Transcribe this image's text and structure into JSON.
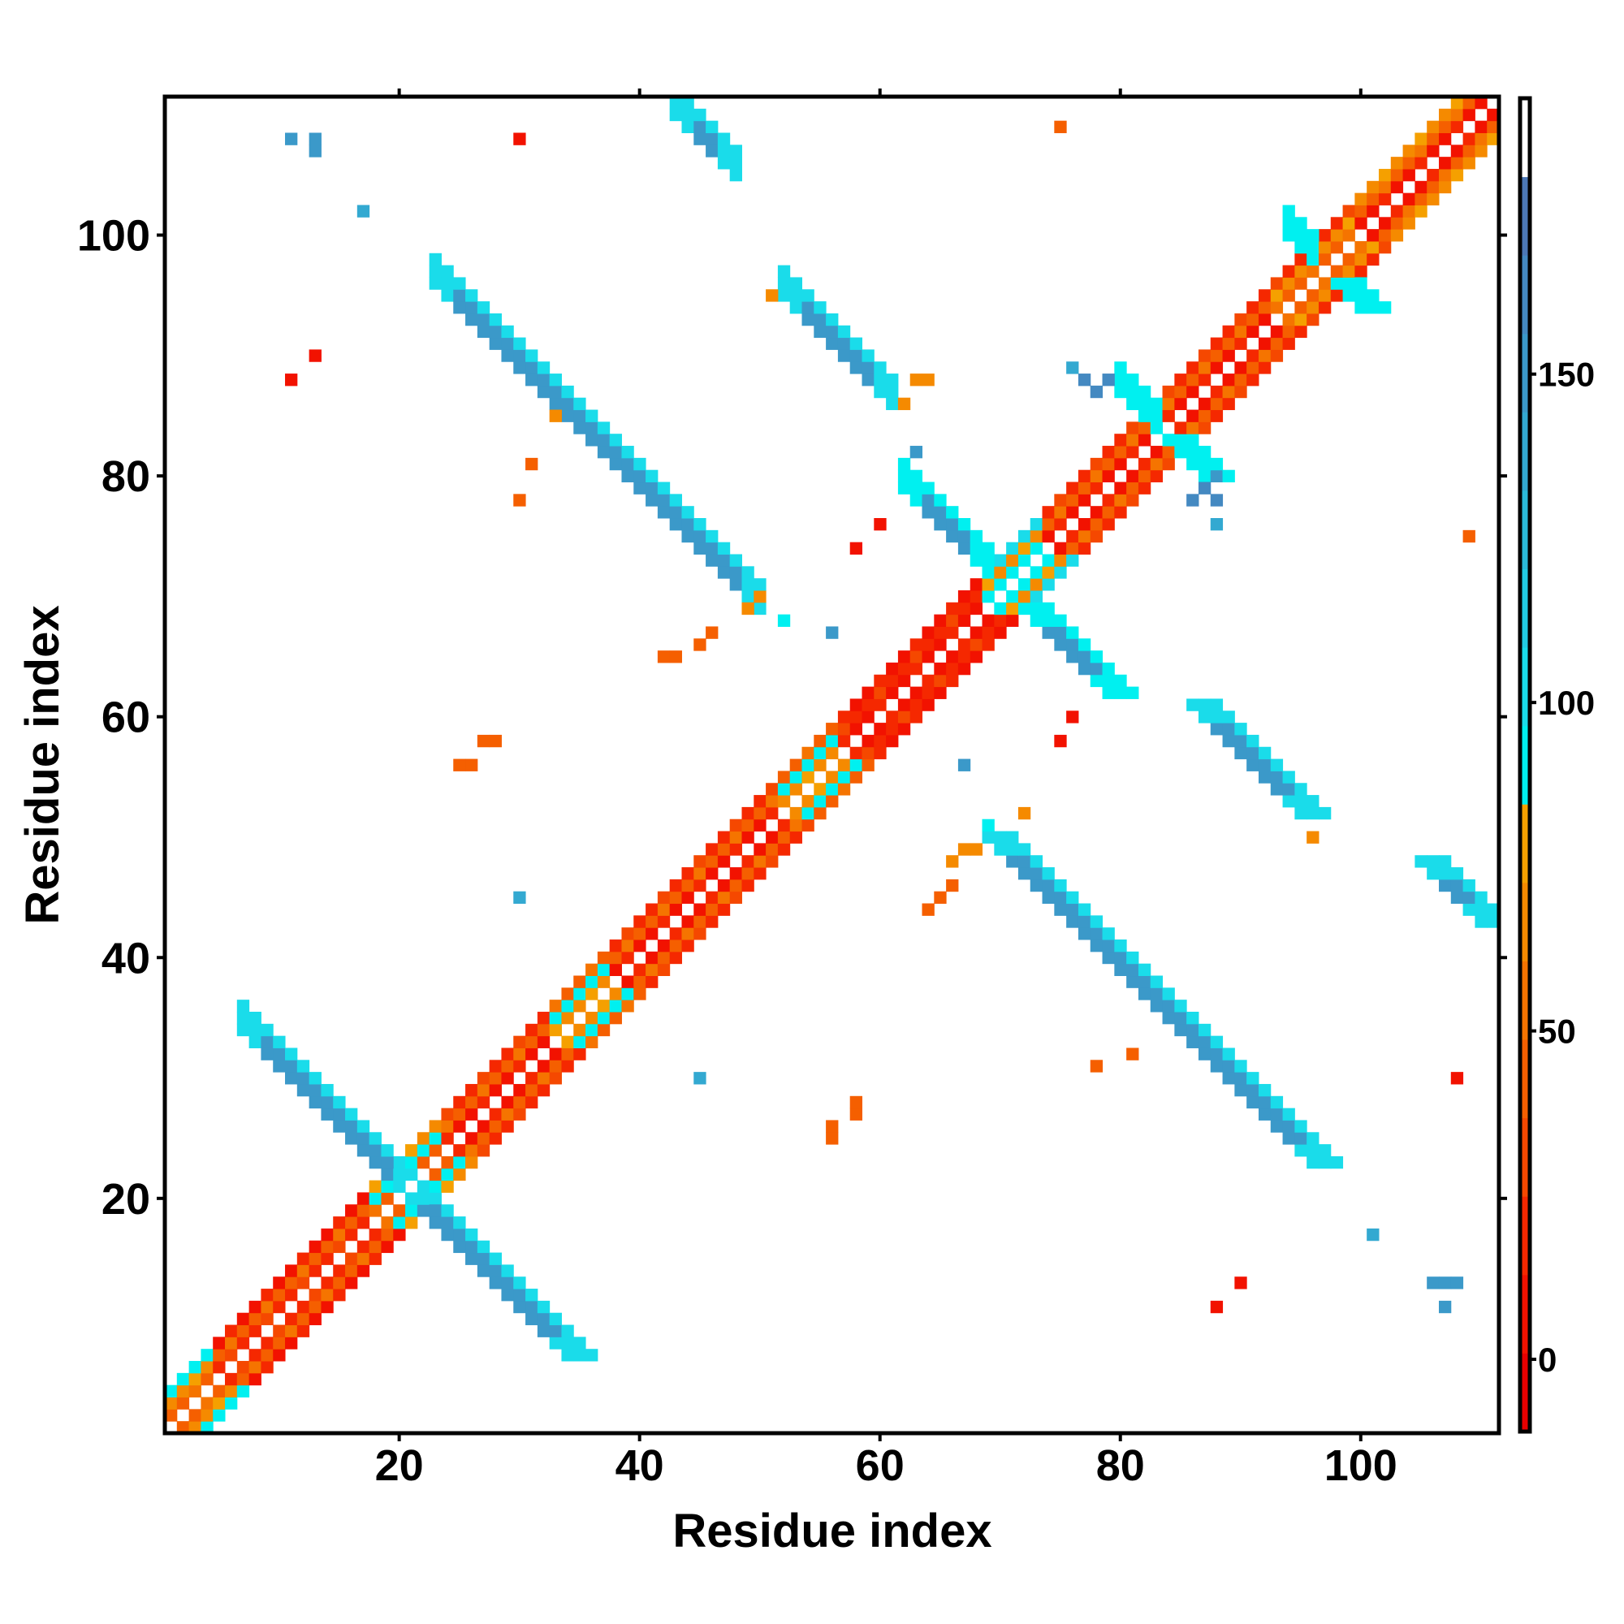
{
  "chart_data": {
    "type": "heatmap",
    "title": "",
    "xlabel": "Residue index",
    "ylabel": "Residue index",
    "n_residues": 111,
    "xlim": [
      0.5,
      111.5
    ],
    "ylim": [
      0.5,
      111.5
    ],
    "xticks": [
      20,
      40,
      60,
      80,
      100
    ],
    "yticks": [
      20,
      40,
      60,
      80,
      100
    ],
    "colorbar": {
      "range": [
        -11,
        192
      ],
      "ticks": [
        0,
        50,
        100,
        150
      ],
      "levels": [
        "#e80000",
        "#f21200",
        "#f52800",
        "#f54800",
        "#f55f00",
        "#f57400",
        "#f58a00",
        "#f5a000",
        "#00f0f0",
        "#1adcea",
        "#22cbe2",
        "#2bbad9",
        "#33a9d1",
        "#3b99c9",
        "#4489c1",
        "#4c78b6"
      ],
      "above_max": "#ffffff"
    },
    "diagonal_regions": [
      {
        "from": 1,
        "to": 5,
        "values": [
          40,
          65,
          95
        ]
      },
      {
        "from": 5,
        "to": 18,
        "values": [
          15,
          40,
          5
        ]
      },
      {
        "from": 18,
        "to": 24,
        "values": [
          40,
          95,
          65
        ]
      },
      {
        "from": 24,
        "to": 33,
        "values": [
          5,
          40,
          15
        ]
      },
      {
        "from": 33,
        "to": 38,
        "values": [
          65,
          95,
          40
        ]
      },
      {
        "from": 38,
        "to": 52,
        "values": [
          5,
          40,
          15
        ]
      },
      {
        "from": 52,
        "to": 57,
        "values": [
          65,
          95,
          40
        ]
      },
      {
        "from": 57,
        "to": 69,
        "values": [
          5,
          15,
          5
        ]
      },
      {
        "from": 69,
        "to": 74,
        "values": [
          95,
          65,
          105
        ]
      },
      {
        "from": 74,
        "to": 93,
        "values": [
          5,
          40,
          15
        ]
      },
      {
        "from": 93,
        "to": 100,
        "values": [
          40,
          65,
          15
        ]
      },
      {
        "from": 100,
        "to": 111,
        "values": [
          5,
          40,
          65
        ]
      }
    ],
    "strands": [
      {
        "from": 7,
        "to": 21,
        "sum": 42,
        "value": 150,
        "edge": 105
      },
      {
        "from": 23,
        "to": 50,
        "sum": 120,
        "value": 150,
        "edge": 105
      },
      {
        "from": 43,
        "to": 48,
        "sum": 154,
        "value": 150,
        "edge": 105
      },
      {
        "from": 52,
        "to": 61,
        "sum": 148,
        "value": 155,
        "edge": 105
      },
      {
        "from": 62,
        "to": 69,
        "sum": 142,
        "value": 150,
        "edge": 95
      },
      {
        "from": 80,
        "to": 83,
        "sum": 168,
        "value": 110,
        "edge": 95
      },
      {
        "from": 94,
        "to": 96,
        "sum": 195,
        "value": 110,
        "edge": 95
      }
    ],
    "points": [
      [
        11,
        108,
        150
      ],
      [
        13,
        108,
        150
      ],
      [
        13,
        107,
        150
      ],
      [
        17,
        102,
        140
      ],
      [
        30,
        108,
        5
      ],
      [
        75,
        109,
        40
      ],
      [
        13,
        90,
        5
      ],
      [
        11,
        88,
        5
      ],
      [
        33,
        85,
        65
      ],
      [
        31,
        81,
        40
      ],
      [
        30,
        78,
        40
      ],
      [
        60,
        76,
        5
      ],
      [
        58,
        74,
        5
      ],
      [
        109,
        75,
        40
      ],
      [
        88,
        76,
        140
      ],
      [
        87,
        79,
        160
      ],
      [
        88,
        78,
        160
      ],
      [
        86,
        78,
        160
      ],
      [
        88,
        80,
        150
      ],
      [
        78,
        87,
        160
      ],
      [
        77,
        88,
        160
      ],
      [
        79,
        88,
        160
      ],
      [
        76,
        89,
        140
      ],
      [
        50,
        70,
        65
      ],
      [
        49,
        69,
        65
      ],
      [
        46,
        67,
        40
      ],
      [
        45,
        66,
        40
      ],
      [
        42,
        65,
        40
      ],
      [
        43,
        65,
        40
      ],
      [
        52,
        68,
        95
      ],
      [
        56,
        67,
        150
      ],
      [
        28,
        58,
        40
      ],
      [
        27,
        58,
        40
      ],
      [
        26,
        56,
        40
      ],
      [
        25,
        56,
        40
      ],
      [
        67,
        56,
        150
      ],
      [
        75,
        58,
        5
      ],
      [
        76,
        60,
        5
      ],
      [
        30,
        45,
        140
      ],
      [
        45,
        30,
        140
      ],
      [
        56,
        25,
        40
      ],
      [
        56,
        26,
        40
      ],
      [
        58,
        27,
        40
      ],
      [
        58,
        28,
        40
      ],
      [
        78,
        31,
        40
      ],
      [
        81,
        32,
        40
      ],
      [
        108,
        30,
        5
      ],
      [
        101,
        17,
        140
      ],
      [
        90,
        13,
        5
      ],
      [
        88,
        11,
        5
      ],
      [
        106,
        13,
        150
      ],
      [
        107,
        13,
        150
      ],
      [
        108,
        13,
        150
      ],
      [
        107,
        11,
        150
      ],
      [
        64,
        44,
        40
      ],
      [
        65,
        45,
        40
      ],
      [
        66,
        46,
        40
      ],
      [
        66,
        48,
        65
      ],
      [
        67,
        49,
        65
      ],
      [
        68,
        49,
        65
      ],
      [
        72,
        52,
        65
      ],
      [
        69,
        51,
        95
      ],
      [
        63,
        82,
        150
      ],
      [
        62,
        86,
        65
      ],
      [
        63,
        88,
        65
      ],
      [
        64,
        88,
        65
      ],
      [
        51,
        95,
        65
      ],
      [
        96,
        50,
        65
      ]
    ]
  }
}
